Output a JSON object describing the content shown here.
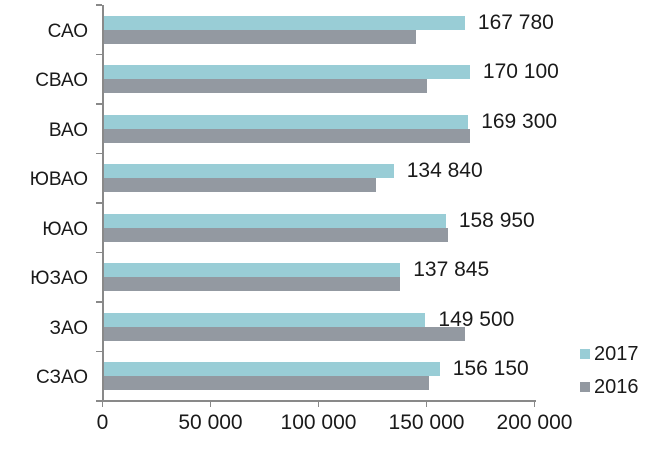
{
  "chart_data": {
    "type": "bar",
    "orientation": "horizontal",
    "title": "",
    "categories": [
      "САО",
      "СВАО",
      "ВАО",
      "ЮВАО",
      "ЮАО",
      "ЮЗАО",
      "ЗАО",
      "СЗАО"
    ],
    "series": [
      {
        "name": "2017",
        "color": "#99CDD6",
        "values": [
          167780,
          170100,
          169300,
          134840,
          158950,
          137845,
          149500,
          156150
        ]
      },
      {
        "name": "2016",
        "color": "#9399A1",
        "values": [
          145000,
          150000,
          170000,
          126500,
          160000,
          137500,
          168000,
          151000
        ],
        "note": "values estimated from bar lengths; no labels shown for this series"
      }
    ],
    "data_labels": [
      "167 780",
      "170 100",
      "169 300",
      "134 840",
      "158 950",
      "137 845",
      "149 500",
      "156 150"
    ],
    "data_labels_for_series": "2017",
    "xlim": [
      0,
      200000
    ],
    "x_ticks": [
      {
        "value": 0,
        "label": "0"
      },
      {
        "value": 50000,
        "label": "50 000"
      },
      {
        "value": 100000,
        "label": "100 000"
      },
      {
        "value": 150000,
        "label": "150 000"
      },
      {
        "value": 200000,
        "label": "200 000"
      }
    ],
    "grid": false,
    "legend": {
      "position": "right-bottom",
      "items": [
        {
          "label": "2017",
          "color": "#99CDD6"
        },
        {
          "label": "2016",
          "color": "#9399A1"
        }
      ]
    },
    "axis_color": "#898989",
    "text_color": "#1a1a1a",
    "background": "#ffffff"
  }
}
